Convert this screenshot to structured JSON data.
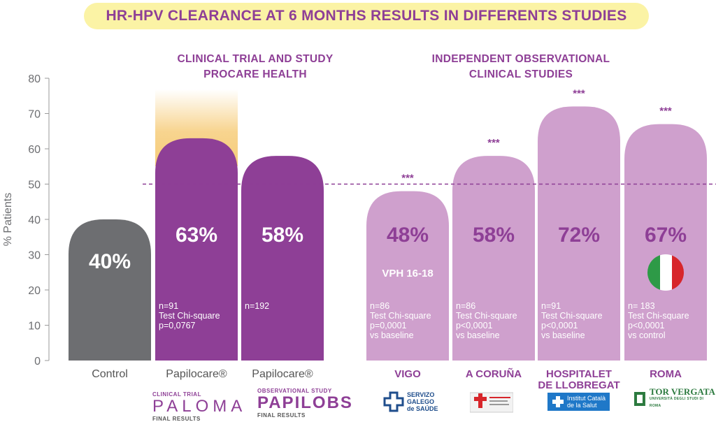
{
  "title": "HR-HPV CLEARANCE AT 6 MONTHS RESULTS IN DIFFERENTS STUDIES",
  "group_headers": {
    "left": [
      "CLINICAL TRIAL AND STUDY",
      "PROCARE HEALTH"
    ],
    "right": [
      "INDEPENDENT OBSERVATIONAL",
      "CLINICAL STUDIES"
    ]
  },
  "colors": {
    "title_bg": "#fbf3a5",
    "title_text": "#8e3f96",
    "control": "#6d6e71",
    "papilocare": "#8e3f96",
    "observational": "#cfa0cd",
    "observational_value": "#8e3f96",
    "reference_line": "#8e3f96",
    "glow": "#f5c66a"
  },
  "chart_data": {
    "type": "bar",
    "ylabel": "% Patients",
    "ylim": [
      0,
      80
    ],
    "yticks": [
      0,
      10,
      20,
      30,
      40,
      50,
      60,
      70,
      80
    ],
    "reference_line": 50,
    "categories": [
      "Control",
      "Papilocare®",
      "Papilocare®",
      "VIGO",
      "A CORUÑA",
      "HOSPITALET DE LLOBREGAT",
      "ROMA"
    ],
    "values": [
      40,
      63,
      58,
      48,
      58,
      72,
      67
    ],
    "value_labels": [
      "40%",
      "63%",
      "58%",
      "48%",
      "58%",
      "72%",
      "67%"
    ],
    "significance": [
      "",
      "",
      "",
      "***",
      "***",
      "***",
      "***"
    ],
    "bar_notes": [
      [],
      [
        "n=91",
        "Test Chi-square",
        "p=0,0767"
      ],
      [
        "n=192"
      ],
      [
        "n=86",
        "Test Chi-square",
        "p=0,0001",
        "vs baseline"
      ],
      [
        "n=86",
        "Test Chi-square",
        "p<0,0001",
        "vs baseline"
      ],
      [
        "n=91",
        "Test Chi-square",
        "p<0,0001",
        "vs baseline"
      ],
      [
        "n= 183",
        "Test Chi-square",
        "p<0,0001",
        "vs control"
      ]
    ],
    "subtitle_in_bar": [
      "",
      "",
      "",
      "VPH 16-18",
      "",
      "",
      ""
    ],
    "groups": [
      "control",
      "papilocare",
      "papilocare",
      "observational",
      "observational",
      "observational",
      "observational"
    ]
  },
  "logos": {
    "paloma": {
      "top": "CLINICAL TRIAL",
      "name": "PALOMA",
      "bottom": "FINAL RESULTS"
    },
    "papilobs": {
      "top": "OBSERVATIONAL STUDY",
      "name": "PAPILOBS",
      "bottom": "FINAL RESULTS"
    },
    "sergas": [
      "SERVIZO",
      "GALEGO",
      "de SAÚDE"
    ],
    "catsalut": [
      "Institut Català",
      "de la Salut"
    ],
    "torvergata": {
      "name": "TOR VERGATA",
      "sub": "UNIVERSITÀ DEGLI STUDI DI ROMA"
    }
  }
}
